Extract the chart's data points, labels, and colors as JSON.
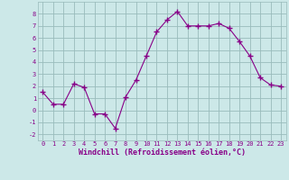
{
  "x": [
    0,
    1,
    2,
    3,
    4,
    5,
    6,
    7,
    8,
    9,
    10,
    11,
    12,
    13,
    14,
    15,
    16,
    17,
    18,
    19,
    20,
    21,
    22,
    23
  ],
  "y": [
    1.5,
    0.5,
    0.5,
    2.2,
    1.9,
    -0.3,
    -0.3,
    -1.5,
    1.1,
    2.5,
    4.5,
    6.5,
    7.5,
    8.2,
    7.0,
    7.0,
    7.0,
    7.2,
    6.8,
    5.7,
    4.5,
    2.7,
    2.1,
    2.0
  ],
  "xlabel": "Windchill (Refroidissement éolien,°C)",
  "xlim": [
    -0.5,
    23.5
  ],
  "ylim": [
    -2.5,
    9.0
  ],
  "yticks": [
    -2,
    -1,
    0,
    1,
    2,
    3,
    4,
    5,
    6,
    7,
    8
  ],
  "xticks": [
    0,
    1,
    2,
    3,
    4,
    5,
    6,
    7,
    8,
    9,
    10,
    11,
    12,
    13,
    14,
    15,
    16,
    17,
    18,
    19,
    20,
    21,
    22,
    23
  ],
  "line_color": "#880088",
  "marker": "+",
  "bg_color": "#cce8e8",
  "grid_color": "#99bbbb",
  "tick_fontsize": 5.0,
  "xlabel_fontsize": 6.0
}
